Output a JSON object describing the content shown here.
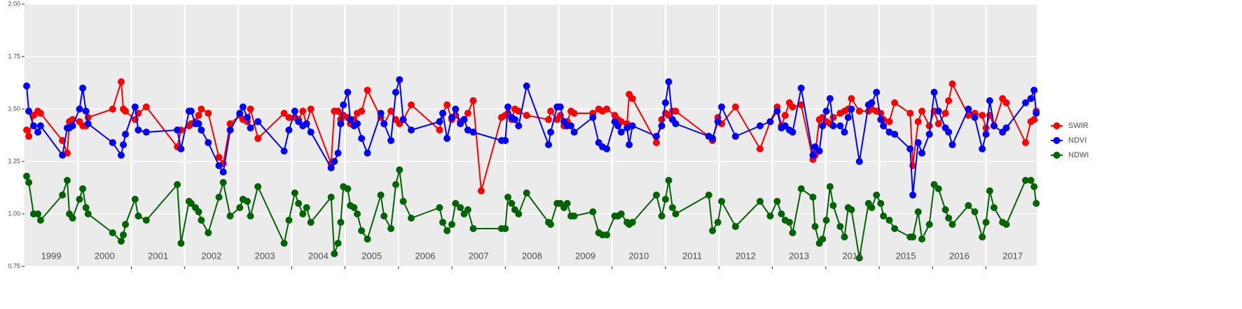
{
  "chart_data": {
    "type": "line",
    "ylim": [
      0.75,
      2.0
    ],
    "yticks": [
      0.75,
      {
        "value": 1.0,
        "label": "1.00"
      },
      1.25,
      {
        "value": 1.5,
        "label": "1.50"
      },
      1.75,
      {
        "value": 2.0,
        "label": "2.00"
      }
    ],
    "xlim": [
      1999.0,
      2017.95
    ],
    "xticks": [
      {
        "value": 1999.5,
        "label": "1999"
      },
      {
        "value": 2000.5,
        "label": "2000"
      },
      {
        "value": 2001.5,
        "label": "2001"
      },
      {
        "value": 2002.5,
        "label": "2002"
      },
      {
        "value": 2003.5,
        "label": "2003"
      },
      {
        "value": 2004.5,
        "label": "2004"
      },
      {
        "value": 2005.5,
        "label": "2005"
      },
      {
        "value": 2006.5,
        "label": "2006"
      },
      {
        "value": 2007.5,
        "label": "2007"
      },
      {
        "value": 2008.5,
        "label": "2008"
      },
      {
        "value": 2009.5,
        "label": "2009"
      },
      {
        "value": 2010.5,
        "label": "2010"
      },
      {
        "value": 2011.5,
        "label": "2011"
      },
      {
        "value": 2012.5,
        "label": "2012"
      },
      {
        "value": 2013.5,
        "label": "2013"
      },
      {
        "value": 2014.5,
        "label": "2014"
      },
      {
        "value": 2015.5,
        "label": "2015"
      },
      {
        "value": 2016.5,
        "label": "2016"
      },
      {
        "value": 2017.5,
        "label": "2017"
      }
    ],
    "x_boundaries": [
      2000,
      2001,
      2002,
      2003,
      2004,
      2005,
      2006,
      2007,
      2008,
      2009,
      2010,
      2011,
      2012,
      2013,
      2014,
      2015,
      2016,
      2017
    ],
    "grid": true,
    "legend": "right",
    "series": [
      {
        "name": "SWIR",
        "color": "#ff0000",
        "x": [
          1999.04,
          1999.08,
          1999.17,
          1999.25,
          1999.3,
          1999.71,
          1999.8,
          1999.84,
          1999.9,
          2000.03,
          2000.09,
          2000.15,
          2000.19,
          2000.65,
          2000.81,
          2000.85,
          2000.89,
          2001.07,
          2001.13,
          2001.28,
          2001.86,
          2001.93,
          2002.08,
          2002.12,
          2002.2,
          2002.26,
          2002.31,
          2002.44,
          2002.64,
          2002.72,
          2002.85,
          2003.03,
          2003.09,
          2003.17,
          2003.23,
          2003.37,
          2003.86,
          2003.95,
          2004.06,
          2004.13,
          2004.21,
          2004.28,
          2004.36,
          2004.74,
          2004.8,
          2004.87,
          2004.92,
          2004.97,
          2005.05,
          2005.1,
          2005.17,
          2005.23,
          2005.31,
          2005.42,
          2005.67,
          2005.73,
          2005.86,
          2005.95,
          2006.02,
          2006.09,
          2006.24,
          2006.77,
          2006.83,
          2006.91,
          2007.0,
          2007.07,
          2007.16,
          2007.23,
          2007.3,
          2007.4,
          2007.55,
          2007.93,
          2008.0,
          2008.05,
          2008.12,
          2008.18,
          2008.25,
          2008.4,
          2008.81,
          2008.85,
          2008.97,
          2009.03,
          2009.1,
          2009.16,
          2009.23,
          2009.29,
          2009.64,
          2009.75,
          2009.82,
          2009.9,
          2010.05,
          2010.11,
          2010.17,
          2010.28,
          2010.32,
          2010.38,
          2010.83,
          2010.93,
          2011.0,
          2011.06,
          2011.13,
          2011.19,
          2011.81,
          2011.88,
          2011.98,
          2012.05,
          2012.31,
          2012.77,
          2012.96,
          2013.09,
          2013.17,
          2013.24,
          2013.32,
          2013.38,
          2013.54,
          2013.76,
          2013.8,
          2013.88,
          2013.94,
          2014.01,
          2014.08,
          2014.14,
          2014.27,
          2014.35,
          2014.42,
          2014.48,
          2014.63,
          2014.8,
          2014.86,
          2014.95,
          2015.03,
          2015.08,
          2015.19,
          2015.29,
          2015.58,
          2015.63,
          2015.73,
          2015.8,
          2015.94,
          2016.03,
          2016.11,
          2016.24,
          2016.3,
          2016.37,
          2016.67,
          2016.79,
          2016.93,
          2017.0,
          2017.07,
          2017.15,
          2017.31,
          2017.38,
          2017.74,
          2017.84,
          2017.9,
          2017.94
        ],
        "values": [
          1.4,
          1.37,
          1.47,
          1.49,
          1.48,
          1.35,
          1.29,
          1.44,
          1.45,
          1.44,
          1.42,
          1.42,
          1.46,
          1.5,
          1.63,
          1.5,
          1.49,
          1.45,
          1.48,
          1.51,
          1.32,
          1.4,
          1.42,
          1.43,
          1.44,
          1.47,
          1.5,
          1.48,
          1.27,
          1.24,
          1.43,
          1.47,
          1.45,
          1.44,
          1.5,
          1.36,
          1.48,
          1.46,
          1.46,
          1.45,
          1.49,
          1.43,
          1.5,
          1.24,
          1.49,
          1.49,
          1.45,
          1.47,
          1.46,
          1.43,
          1.45,
          1.48,
          1.49,
          1.59,
          1.46,
          1.43,
          1.49,
          1.45,
          1.43,
          1.45,
          1.52,
          1.4,
          1.48,
          1.52,
          1.45,
          1.47,
          1.44,
          1.45,
          1.48,
          1.54,
          1.11,
          1.46,
          1.47,
          1.48,
          1.45,
          1.5,
          1.49,
          1.47,
          1.45,
          1.49,
          1.45,
          1.47,
          1.42,
          1.44,
          1.49,
          1.48,
          1.48,
          1.5,
          1.49,
          1.5,
          1.47,
          1.45,
          1.44,
          1.43,
          1.57,
          1.55,
          1.34,
          1.45,
          1.48,
          1.47,
          1.49,
          1.49,
          1.37,
          1.35,
          1.46,
          1.43,
          1.51,
          1.31,
          1.44,
          1.51,
          1.42,
          1.47,
          1.53,
          1.51,
          1.52,
          1.26,
          1.28,
          1.45,
          1.46,
          1.44,
          1.43,
          1.46,
          1.48,
          1.49,
          1.5,
          1.55,
          1.49,
          1.49,
          1.5,
          1.49,
          1.48,
          1.45,
          1.44,
          1.53,
          1.48,
          1.23,
          1.44,
          1.49,
          1.42,
          1.49,
          1.43,
          1.48,
          1.54,
          1.62,
          1.47,
          1.48,
          1.47,
          1.41,
          1.47,
          1.42,
          1.55,
          1.53,
          1.34,
          1.44,
          1.45,
          1.49
        ]
      },
      {
        "name": "NDVI",
        "color": "#0000ff",
        "x": [
          1999.04,
          1999.08,
          1999.17,
          1999.25,
          1999.3,
          1999.71,
          1999.8,
          1999.84,
          1999.9,
          2000.03,
          2000.09,
          2000.15,
          2000.19,
          2000.65,
          2000.81,
          2000.85,
          2000.89,
          2001.07,
          2001.13,
          2001.28,
          2001.86,
          2001.93,
          2002.08,
          2002.12,
          2002.2,
          2002.26,
          2002.31,
          2002.44,
          2002.64,
          2002.72,
          2002.85,
          2003.03,
          2003.09,
          2003.17,
          2003.23,
          2003.37,
          2003.86,
          2003.95,
          2004.06,
          2004.13,
          2004.21,
          2004.28,
          2004.36,
          2004.74,
          2004.8,
          2004.87,
          2004.92,
          2004.97,
          2005.05,
          2005.1,
          2005.17,
          2005.23,
          2005.31,
          2005.42,
          2005.67,
          2005.73,
          2005.86,
          2005.95,
          2006.02,
          2006.09,
          2006.24,
          2006.77,
          2006.83,
          2006.91,
          2007.0,
          2007.07,
          2007.16,
          2007.23,
          2007.3,
          2007.4,
          2007.93,
          2008.0,
          2008.05,
          2008.12,
          2008.18,
          2008.25,
          2008.4,
          2008.81,
          2008.85,
          2008.97,
          2009.03,
          2009.1,
          2009.16,
          2009.23,
          2009.29,
          2009.64,
          2009.75,
          2009.82,
          2009.9,
          2010.05,
          2010.11,
          2010.17,
          2010.28,
          2010.32,
          2010.38,
          2010.83,
          2010.93,
          2011.0,
          2011.06,
          2011.13,
          2011.19,
          2011.81,
          2011.88,
          2011.98,
          2012.05,
          2012.31,
          2012.77,
          2012.96,
          2013.09,
          2013.17,
          2013.24,
          2013.32,
          2013.38,
          2013.54,
          2013.76,
          2013.8,
          2013.88,
          2013.94,
          2014.01,
          2014.08,
          2014.14,
          2014.27,
          2014.35,
          2014.42,
          2014.48,
          2014.63,
          2014.8,
          2014.86,
          2014.95,
          2015.03,
          2015.08,
          2015.19,
          2015.29,
          2015.58,
          2015.63,
          2015.73,
          2015.8,
          2015.94,
          2016.03,
          2016.11,
          2016.24,
          2016.3,
          2016.37,
          2016.67,
          2016.79,
          2016.93,
          2017.0,
          2017.07,
          2017.15,
          2017.31,
          2017.38,
          2017.74,
          2017.84,
          2017.9,
          2017.94
        ],
        "values": [
          1.61,
          1.49,
          1.42,
          1.39,
          1.42,
          1.28,
          1.41,
          1.41,
          1.42,
          1.5,
          1.6,
          1.49,
          1.43,
          1.34,
          1.28,
          1.33,
          1.38,
          1.51,
          1.4,
          1.39,
          1.4,
          1.31,
          1.49,
          1.49,
          1.43,
          1.43,
          1.4,
          1.34,
          1.23,
          1.2,
          1.4,
          1.48,
          1.51,
          1.46,
          1.41,
          1.44,
          1.3,
          1.4,
          1.49,
          1.44,
          1.42,
          1.43,
          1.39,
          1.22,
          1.25,
          1.29,
          1.43,
          1.52,
          1.58,
          1.45,
          1.42,
          1.43,
          1.36,
          1.29,
          1.48,
          1.43,
          1.35,
          1.58,
          1.64,
          1.45,
          1.4,
          1.44,
          1.48,
          1.36,
          1.46,
          1.5,
          1.43,
          1.45,
          1.4,
          1.39,
          1.35,
          1.35,
          1.51,
          1.46,
          1.45,
          1.42,
          1.61,
          1.33,
          1.39,
          1.51,
          1.51,
          1.44,
          1.42,
          1.42,
          1.39,
          1.46,
          1.34,
          1.32,
          1.31,
          1.44,
          1.42,
          1.39,
          1.41,
          1.33,
          1.42,
          1.37,
          1.42,
          1.53,
          1.63,
          1.45,
          1.43,
          1.37,
          1.36,
          1.44,
          1.51,
          1.37,
          1.42,
          1.44,
          1.49,
          1.41,
          1.42,
          1.4,
          1.39,
          1.6,
          1.28,
          1.32,
          1.3,
          1.42,
          1.49,
          1.55,
          1.42,
          1.42,
          1.39,
          1.46,
          1.5,
          1.25,
          1.52,
          1.53,
          1.58,
          1.45,
          1.42,
          1.39,
          1.38,
          1.31,
          1.09,
          1.34,
          1.29,
          1.38,
          1.58,
          1.49,
          1.41,
          1.39,
          1.33,
          1.5,
          1.46,
          1.31,
          1.38,
          1.54,
          1.42,
          1.39,
          1.41,
          1.53,
          1.55,
          1.59,
          1.48
        ]
      },
      {
        "name": "NDWI",
        "color": "#006400",
        "x": [
          1999.04,
          1999.08,
          1999.17,
          1999.25,
          1999.3,
          1999.71,
          1999.8,
          1999.84,
          1999.9,
          2000.03,
          2000.09,
          2000.15,
          2000.19,
          2000.65,
          2000.81,
          2000.85,
          2000.89,
          2001.07,
          2001.13,
          2001.28,
          2001.86,
          2001.93,
          2002.08,
          2002.12,
          2002.2,
          2002.26,
          2002.31,
          2002.44,
          2002.64,
          2002.72,
          2002.85,
          2003.03,
          2003.09,
          2003.17,
          2003.23,
          2003.37,
          2003.86,
          2003.95,
          2004.06,
          2004.13,
          2004.21,
          2004.28,
          2004.36,
          2004.74,
          2004.8,
          2004.87,
          2004.92,
          2004.97,
          2005.05,
          2005.1,
          2005.17,
          2005.23,
          2005.31,
          2005.42,
          2005.67,
          2005.73,
          2005.86,
          2005.95,
          2006.02,
          2006.09,
          2006.24,
          2006.77,
          2006.83,
          2006.91,
          2007.0,
          2007.07,
          2007.16,
          2007.23,
          2007.3,
          2007.4,
          2007.93,
          2008.0,
          2008.05,
          2008.12,
          2008.18,
          2008.25,
          2008.4,
          2008.81,
          2008.85,
          2008.97,
          2009.03,
          2009.1,
          2009.16,
          2009.23,
          2009.29,
          2009.64,
          2009.75,
          2009.82,
          2009.9,
          2010.05,
          2010.11,
          2010.17,
          2010.28,
          2010.32,
          2010.38,
          2010.83,
          2010.93,
          2011.0,
          2011.06,
          2011.13,
          2011.19,
          2011.81,
          2011.88,
          2011.98,
          2012.05,
          2012.31,
          2012.77,
          2012.96,
          2013.09,
          2013.17,
          2013.24,
          2013.32,
          2013.38,
          2013.54,
          2013.76,
          2013.8,
          2013.88,
          2013.94,
          2014.01,
          2014.08,
          2014.14,
          2014.27,
          2014.35,
          2014.42,
          2014.48,
          2014.63,
          2014.8,
          2014.86,
          2014.95,
          2015.03,
          2015.08,
          2015.19,
          2015.29,
          2015.58,
          2015.63,
          2015.73,
          2015.8,
          2015.94,
          2016.03,
          2016.11,
          2016.24,
          2016.3,
          2016.37,
          2016.67,
          2016.79,
          2016.93,
          2017.0,
          2017.07,
          2017.15,
          2017.31,
          2017.38,
          2017.74,
          2017.84,
          2017.9,
          2017.94
        ],
        "values": [
          1.18,
          1.15,
          1.0,
          1.0,
          0.97,
          1.09,
          1.16,
          1.0,
          0.98,
          1.07,
          1.12,
          1.03,
          1.0,
          0.91,
          0.87,
          0.9,
          0.95,
          1.07,
          0.99,
          0.97,
          1.14,
          0.86,
          1.06,
          1.05,
          1.03,
          1.01,
          0.97,
          0.91,
          1.08,
          1.15,
          0.99,
          1.03,
          1.07,
          1.06,
          0.99,
          1.13,
          0.86,
          0.97,
          1.1,
          1.05,
          1.0,
          1.03,
          0.96,
          1.08,
          0.81,
          0.86,
          0.96,
          1.13,
          1.12,
          1.04,
          1.03,
          1.0,
          0.92,
          0.88,
          1.09,
          0.99,
          0.93,
          1.14,
          1.21,
          1.06,
          0.98,
          1.03,
          0.96,
          0.92,
          0.95,
          1.05,
          1.03,
          1.0,
          1.02,
          0.93,
          0.93,
          0.93,
          1.08,
          1.05,
          1.02,
          1.0,
          1.1,
          0.96,
          0.95,
          1.05,
          1.05,
          1.03,
          1.05,
          0.99,
          0.99,
          1.01,
          0.91,
          0.9,
          0.9,
          0.99,
          0.99,
          1.0,
          0.96,
          0.95,
          0.96,
          1.09,
          0.99,
          1.07,
          1.16,
          1.03,
          1.0,
          1.09,
          0.92,
          0.96,
          1.06,
          0.94,
          1.06,
          0.99,
          1.06,
          1.0,
          0.97,
          0.96,
          0.91,
          1.12,
          1.08,
          0.94,
          0.86,
          0.88,
          0.97,
          1.13,
          1.04,
          0.94,
          0.89,
          1.03,
          1.02,
          0.79,
          1.05,
          1.03,
          1.09,
          1.05,
          0.99,
          0.97,
          0.93,
          0.89,
          0.89,
          1.01,
          0.88,
          0.95,
          1.14,
          1.12,
          1.02,
          0.98,
          0.95,
          1.04,
          1.01,
          0.89,
          0.96,
          1.11,
          1.03,
          0.96,
          0.95,
          1.16,
          1.16,
          1.13,
          1.05
        ]
      }
    ]
  }
}
